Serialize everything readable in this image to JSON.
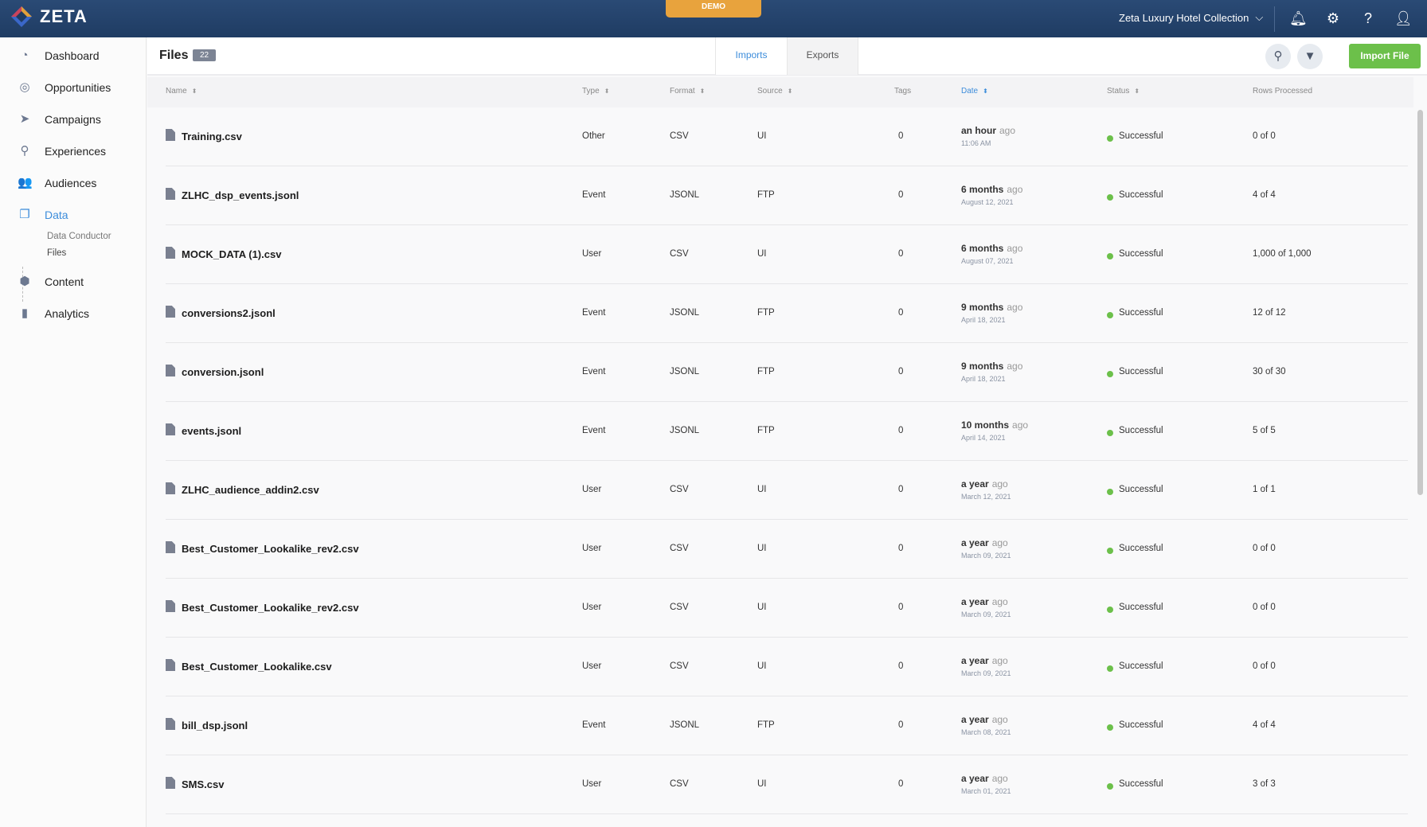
{
  "app": {
    "logo": "ZETA",
    "demo_badge": "DEMO",
    "org": "Zeta Luxury Hotel Collection"
  },
  "icons": {
    "notifications": "bell-icon",
    "settings": "gear-icon",
    "help": "question-icon",
    "user": "user-icon"
  },
  "colors": {
    "topbar": "#25466f",
    "accent": "#3d8ddb",
    "success": "#6cc04a",
    "demo": "#e8a33d"
  },
  "sidebar": {
    "items": [
      {
        "label": "Dashboard",
        "icon": "◔"
      },
      {
        "label": "Opportunities",
        "icon": "◎"
      },
      {
        "label": "Campaigns",
        "icon": "➤"
      },
      {
        "label": "Experiences",
        "icon": "⚲"
      },
      {
        "label": "Audiences",
        "icon": "👥"
      },
      {
        "label": "Data",
        "icon": "❐",
        "active": true
      },
      {
        "label": "Content",
        "icon": "⬢"
      },
      {
        "label": "Analytics",
        "icon": "▮"
      }
    ],
    "sub_items": [
      {
        "label": "Data Conductor"
      },
      {
        "label": "Files",
        "active": true
      }
    ]
  },
  "header": {
    "title": "Files",
    "count": "22",
    "tabs": [
      {
        "label": "Imports",
        "active": true
      },
      {
        "label": "Exports"
      }
    ],
    "import_label": "Import File"
  },
  "table": {
    "columns": [
      "Name",
      "Type",
      "Format",
      "Source",
      "Tags",
      "Date",
      "Status",
      "Rows Processed"
    ],
    "rows": [
      {
        "name": "Training.csv",
        "type": "Other",
        "format": "CSV",
        "source": "UI",
        "tags": "0",
        "rel": "an hour",
        "ago": "ago",
        "date": "11:06 AM",
        "status": "Successful",
        "rows": "0 of 0"
      },
      {
        "name": "ZLHC_dsp_events.jsonl",
        "type": "Event",
        "format": "JSONL",
        "source": "FTP",
        "tags": "0",
        "rel": "6 months",
        "ago": "ago",
        "date": "August 12, 2021",
        "status": "Successful",
        "rows": "4 of 4"
      },
      {
        "name": "MOCK_DATA (1).csv",
        "type": "User",
        "format": "CSV",
        "source": "UI",
        "tags": "0",
        "rel": "6 months",
        "ago": "ago",
        "date": "August 07, 2021",
        "status": "Successful",
        "rows": "1,000 of 1,000"
      },
      {
        "name": "conversions2.jsonl",
        "type": "Event",
        "format": "JSONL",
        "source": "FTP",
        "tags": "0",
        "rel": "9 months",
        "ago": "ago",
        "date": "April 18, 2021",
        "status": "Successful",
        "rows": "12 of 12"
      },
      {
        "name": "conversion.jsonl",
        "type": "Event",
        "format": "JSONL",
        "source": "FTP",
        "tags": "0",
        "rel": "9 months",
        "ago": "ago",
        "date": "April 18, 2021",
        "status": "Successful",
        "rows": "30 of 30"
      },
      {
        "name": "events.jsonl",
        "type": "Event",
        "format": "JSONL",
        "source": "FTP",
        "tags": "0",
        "rel": "10 months",
        "ago": "ago",
        "date": "April 14, 2021",
        "status": "Successful",
        "rows": "5 of 5"
      },
      {
        "name": "ZLHC_audience_addin2.csv",
        "type": "User",
        "format": "CSV",
        "source": "UI",
        "tags": "0",
        "rel": "a year",
        "ago": "ago",
        "date": "March 12, 2021",
        "status": "Successful",
        "rows": "1 of 1"
      },
      {
        "name": "Best_Customer_Lookalike_rev2.csv",
        "type": "User",
        "format": "CSV",
        "source": "UI",
        "tags": "0",
        "rel": "a year",
        "ago": "ago",
        "date": "March 09, 2021",
        "status": "Successful",
        "rows": "0 of 0"
      },
      {
        "name": "Best_Customer_Lookalike_rev2.csv",
        "type": "User",
        "format": "CSV",
        "source": "UI",
        "tags": "0",
        "rel": "a year",
        "ago": "ago",
        "date": "March 09, 2021",
        "status": "Successful",
        "rows": "0 of 0"
      },
      {
        "name": "Best_Customer_Lookalike.csv",
        "type": "User",
        "format": "CSV",
        "source": "UI",
        "tags": "0",
        "rel": "a year",
        "ago": "ago",
        "date": "March 09, 2021",
        "status": "Successful",
        "rows": "0 of 0"
      },
      {
        "name": "bill_dsp.jsonl",
        "type": "Event",
        "format": "JSONL",
        "source": "FTP",
        "tags": "0",
        "rel": "a year",
        "ago": "ago",
        "date": "March 08, 2021",
        "status": "Successful",
        "rows": "4 of 4"
      },
      {
        "name": "SMS.csv",
        "type": "User",
        "format": "CSV",
        "source": "UI",
        "tags": "0",
        "rel": "a year",
        "ago": "ago",
        "date": "March 01, 2021",
        "status": "Successful",
        "rows": "3 of 3"
      }
    ]
  }
}
